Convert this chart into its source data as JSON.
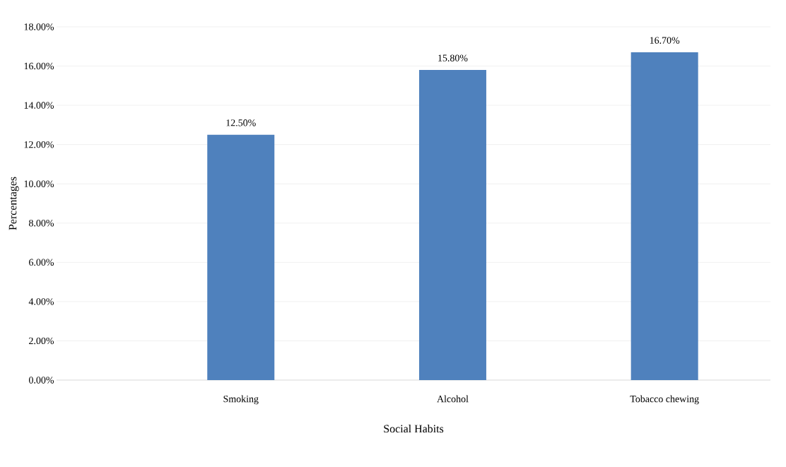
{
  "chart_data": {
    "type": "bar",
    "xlabel": "Social Habits",
    "ylabel": "Percentages",
    "categories": [
      "Smoking",
      "Alcohol",
      "Tobacco chewing"
    ],
    "values": [
      12.5,
      15.8,
      16.7
    ],
    "value_labels": [
      "12.50%",
      "15.80%",
      "16.70%"
    ],
    "color": "#4f81bd",
    "ylim": [
      0,
      18
    ],
    "yticks": [
      {
        "value": 0,
        "label": "0.00%"
      },
      {
        "value": 2,
        "label": "2.00%"
      },
      {
        "value": 4,
        "label": "4.00%"
      },
      {
        "value": 6,
        "label": "6.00%"
      },
      {
        "value": 8,
        "label": "8.00%"
      },
      {
        "value": 10,
        "label": "10.00%"
      },
      {
        "value": 12,
        "label": "12.00%"
      },
      {
        "value": 14,
        "label": "14.00%"
      },
      {
        "value": 16,
        "label": "16.00%"
      },
      {
        "value": 18,
        "label": "18.00%"
      }
    ],
    "grid": "y"
  }
}
